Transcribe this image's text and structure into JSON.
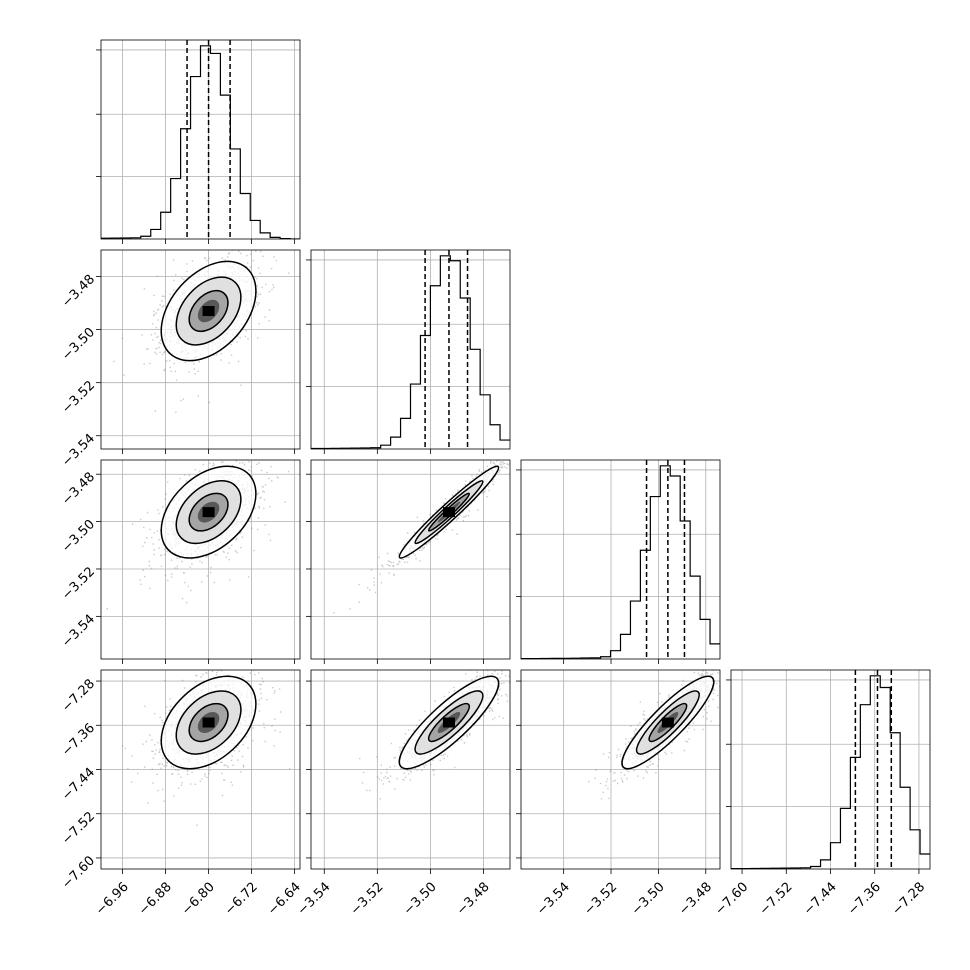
{
  "chart_data": {
    "type": "corner",
    "num_params": 4,
    "grid": true,
    "tick_labels": [
      [
        "-6.96",
        "-6.88",
        "-6.80",
        "-6.72",
        "-6.64"
      ],
      [
        "-3.54",
        "-3.52",
        "-3.50",
        "-3.48"
      ],
      [
        "-3.54",
        "-3.52",
        "-3.50",
        "-3.48"
      ],
      [
        "-7.60",
        "-7.52",
        "-7.44",
        "-7.36",
        "-7.28"
      ]
    ],
    "params": [
      {
        "range": [
          -7.0,
          -6.63
        ],
        "ticks": [
          -6.96,
          -6.88,
          -6.8,
          -6.72,
          -6.64
        ],
        "quantiles": [
          -6.84,
          -6.8,
          -6.76
        ],
        "hist_peak": -6.8,
        "hist_sigma": 0.04
      },
      {
        "range": [
          -3.545,
          -3.47
        ],
        "ticks": [
          -3.54,
          -3.52,
          -3.5,
          -3.48
        ],
        "quantiles": [
          -3.502,
          -3.493,
          -3.486
        ],
        "hist_peak": -3.493,
        "hist_sigma": 0.0085
      },
      {
        "range": [
          -3.558,
          -3.474
        ],
        "ticks": [
          -3.54,
          -3.52,
          -3.5,
          -3.48
        ],
        "quantiles": [
          -3.505,
          -3.496,
          -3.489
        ],
        "hist_peak": -3.496,
        "hist_sigma": 0.0088
      },
      {
        "range": [
          -7.62,
          -7.26
        ],
        "ticks": [
          -7.6,
          -7.52,
          -7.44,
          -7.36,
          -7.28
        ],
        "quantiles": [
          -7.395,
          -7.355,
          -7.33
        ],
        "hist_peak": -7.355,
        "hist_sigma": 0.038
      }
    ],
    "correlations": [
      {
        "pair": [
          1,
          0
        ],
        "value": 0.4
      },
      {
        "pair": [
          2,
          0
        ],
        "value": 0.4
      },
      {
        "pair": [
          2,
          1
        ],
        "value": 0.97
      },
      {
        "pair": [
          3,
          0
        ],
        "value": 0.4
      },
      {
        "pair": [
          3,
          1
        ],
        "value": 0.85
      },
      {
        "pair": [
          3,
          2
        ],
        "value": 0.88
      }
    ]
  }
}
